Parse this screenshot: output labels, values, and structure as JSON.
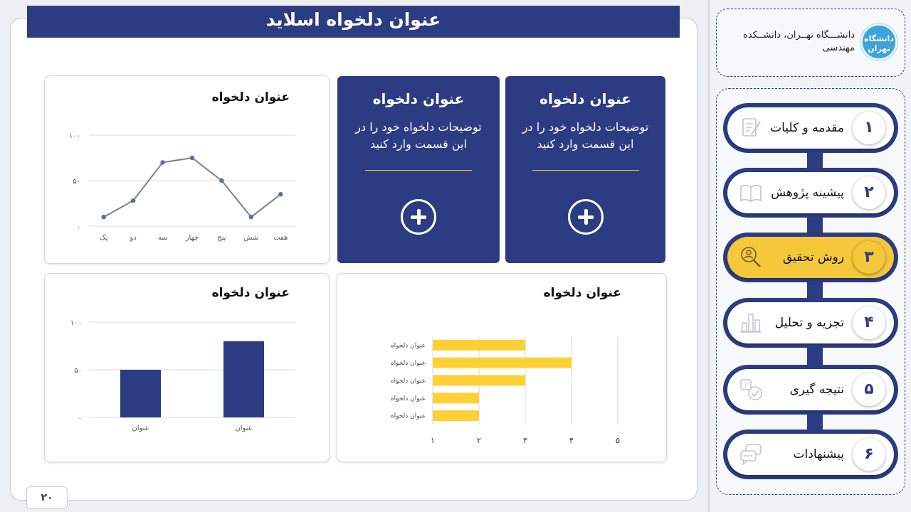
{
  "slide": {
    "title": "عنوان دلخواه اسلاید",
    "page_number": "۲۰"
  },
  "blue_cards": [
    {
      "title": "عنوان دلخواه",
      "description": "توضیحات دلخواه خود را در این قسمت وارد کنید"
    },
    {
      "title": "عنوان دلخواه",
      "description": "توضیحات دلخواه خود را در این قسمت وارد کنید"
    }
  ],
  "chart_data": [
    {
      "type": "line",
      "title": "عنوان دلخواه",
      "categories": [
        "یک",
        "دو",
        "سه",
        "چهار",
        "پنج",
        "شش",
        "هفت"
      ],
      "values": [
        10,
        28,
        70,
        75,
        50,
        10,
        35
      ],
      "ylim": [
        0,
        100
      ],
      "yticks": [
        "۰",
        "۵۰",
        "۱۰۰"
      ],
      "grid": true,
      "color": "#7f7f7f",
      "marker_color": "#4f6fb0"
    },
    {
      "type": "bar",
      "title": "عنوان دلخواه",
      "categories": [
        "عنوان",
        "عنوان"
      ],
      "values": [
        50,
        80
      ],
      "ylim": [
        0,
        100
      ],
      "yticks": [
        "۰",
        "۵۰",
        "۱۰۰"
      ],
      "grid": true,
      "color": "#2b3c82"
    },
    {
      "type": "bar",
      "orientation": "horizontal",
      "title": "عنوان دلخواه",
      "categories": [
        "عنوان دلخواه",
        "عنوان دلخواه",
        "عنوان دلخواه",
        "عنوان دلخواه",
        "عنوان دلخواه"
      ],
      "values": [
        3,
        4,
        3,
        2,
        2
      ],
      "xlim": [
        1,
        5
      ],
      "xticks": [
        "۱",
        "۲",
        "۳",
        "۴",
        "۵"
      ],
      "grid": true,
      "color": "#fdd036"
    }
  ],
  "sidebar": {
    "university": "دانشـــگاه تهــران، دانشــکده مهندسی",
    "logo_text": "دانشگاه تهران",
    "accent": "#2b3c82",
    "active_color": "#f5c73a",
    "items": [
      {
        "num": "۱",
        "label": "مقدمه و کلیات",
        "icon": "document-pen-icon",
        "active": false
      },
      {
        "num": "۲",
        "label": "پیشینه پژوهش",
        "icon": "book-icon",
        "active": false
      },
      {
        "num": "۳",
        "label": "روش تحقیق",
        "icon": "search-person-icon",
        "active": true
      },
      {
        "num": "۴",
        "label": "تجزیه و تحلیل",
        "icon": "bar-chart-icon",
        "active": false
      },
      {
        "num": "۵",
        "label": "نتیجه گیری",
        "icon": "question-check-icon",
        "active": false
      },
      {
        "num": "۶",
        "label": "پیشنهادات",
        "icon": "chat-bubbles-icon",
        "active": false
      }
    ]
  }
}
